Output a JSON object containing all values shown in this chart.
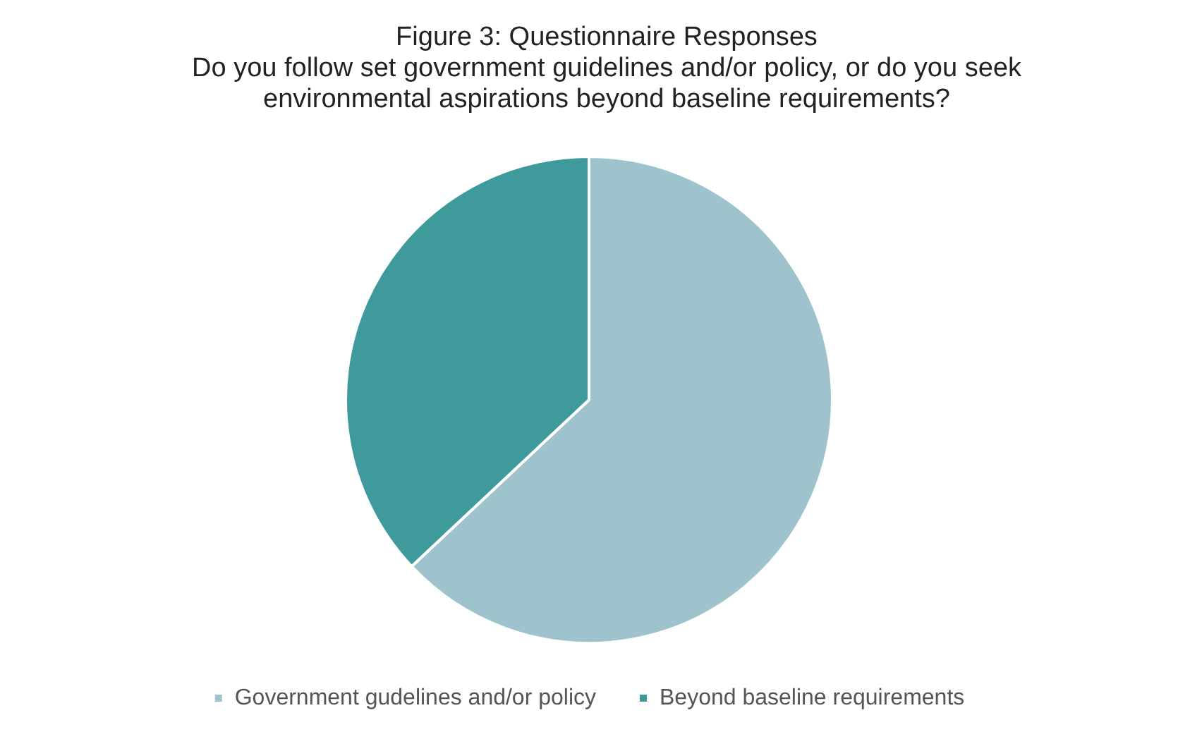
{
  "chart_data": {
    "type": "pie",
    "title": "Figure 3: Questionnaire Responses",
    "subtitle": "Do you follow set government guidelines and/or policy, or do you seek environmental aspirations beyond baseline requirements?",
    "categories": [
      "Government gudelines and/or policy",
      "Beyond baseline requirements"
    ],
    "values": [
      63,
      37
    ],
    "colors": [
      "#9fc3cc",
      "#3f9a9b"
    ],
    "legend": "bottom"
  }
}
